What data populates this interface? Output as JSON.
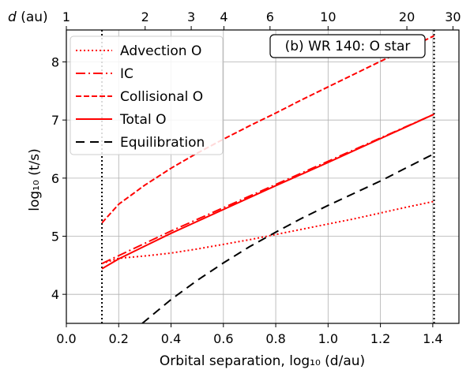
{
  "chart_data": {
    "type": "line",
    "annotation": "(b) WR 140: O star",
    "xlabel": "Orbital separation, log₁₀ (d/au)",
    "ylabel": "log₁₀ (t/s)",
    "top_axis_label": "d (au)",
    "xlim": [
      0.0,
      1.5
    ],
    "ylim": [
      3.5,
      8.55
    ],
    "xticks": [
      0.0,
      0.2,
      0.4,
      0.6,
      0.8,
      1.0,
      1.2,
      1.4
    ],
    "xtick_labels": [
      "0.0",
      "0.2",
      "0.4",
      "0.6",
      "0.8",
      "1.0",
      "1.2",
      "1.4"
    ],
    "yticks": [
      4,
      5,
      6,
      7,
      8
    ],
    "ytick_labels": [
      "4",
      "5",
      "6",
      "7",
      "8"
    ],
    "top_ticks_au": [
      1,
      2,
      3,
      4,
      6,
      10,
      20,
      30
    ],
    "top_tick_labels": [
      "1",
      "2",
      "3",
      "4",
      "6",
      "10",
      "20",
      "30"
    ],
    "grid": true,
    "legend_position": "top-left",
    "vlines": [
      0.136,
      1.405
    ],
    "colors": {
      "red": "#ff0000",
      "black": "#000000",
      "grid": "#b0b0b0"
    },
    "series": [
      {
        "name": "Advection O",
        "style": "dotted",
        "color": "#ff0000",
        "x": [
          0.136,
          0.2,
          0.3,
          0.4,
          0.5,
          0.6,
          0.7,
          0.8,
          0.9,
          1.0,
          1.1,
          1.2,
          1.3,
          1.405
        ],
        "y": [
          4.53,
          4.62,
          4.66,
          4.71,
          4.78,
          4.86,
          4.94,
          5.03,
          5.12,
          5.21,
          5.3,
          5.4,
          5.5,
          5.6
        ]
      },
      {
        "name": "IC",
        "style": "dashdot",
        "color": "#ff0000",
        "x": [
          0.136,
          0.4,
          0.8,
          1.0,
          1.405
        ],
        "y": [
          4.53,
          5.09,
          5.89,
          6.29,
          7.1
        ]
      },
      {
        "name": "Collisional O",
        "style": "dashed",
        "color": "#ff0000",
        "x": [
          0.136,
          0.2,
          0.3,
          0.4,
          0.5,
          0.6,
          0.7,
          0.8,
          0.9,
          1.0,
          1.1,
          1.2,
          1.3,
          1.405
        ],
        "y": [
          5.23,
          5.55,
          5.88,
          6.17,
          6.43,
          6.67,
          6.9,
          7.12,
          7.35,
          7.57,
          7.79,
          8.01,
          8.22,
          8.45
        ]
      },
      {
        "name": "Total O",
        "style": "solid",
        "color": "#ff0000",
        "x": [
          0.136,
          0.2,
          0.3,
          0.4,
          0.6,
          0.8,
          1.0,
          1.2,
          1.405
        ],
        "y": [
          4.44,
          4.61,
          4.83,
          5.05,
          5.46,
          5.87,
          6.27,
          6.68,
          7.1
        ]
      },
      {
        "name": "Equilibration",
        "style": "longdash",
        "color": "#000000",
        "x": [
          0.29,
          0.4,
          0.5,
          0.6,
          0.7,
          0.8,
          0.9,
          1.0,
          1.1,
          1.2,
          1.3,
          1.405
        ],
        "y": [
          3.5,
          3.91,
          4.24,
          4.54,
          4.82,
          5.07,
          5.31,
          5.53,
          5.74,
          5.95,
          6.18,
          6.42
        ]
      }
    ]
  }
}
